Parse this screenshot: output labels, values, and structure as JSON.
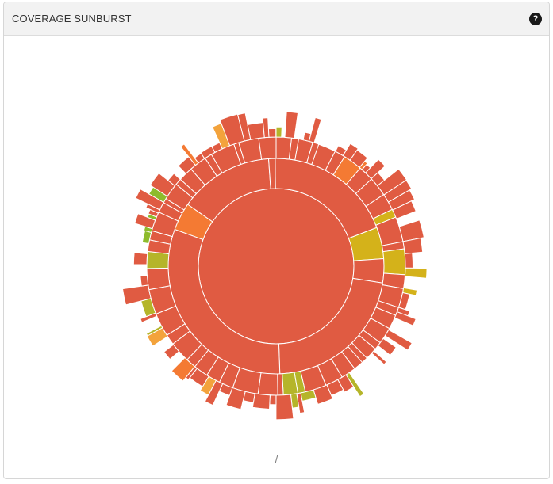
{
  "panel": {
    "title": "COVERAGE SUNBURST",
    "help_icon": "question-circle-icon",
    "breadcrumb": "/"
  },
  "colors": {
    "red": "#e05b42",
    "orange": "#f47a33",
    "yellow": "#d4b21a",
    "olive": "#b5b52a",
    "green": "#8dbb2c",
    "light_orange": "#f3a33c"
  },
  "chart_data": {
    "type": "sunburst",
    "rings": [
      {
        "level": 0,
        "segments": [
          {
            "start_deg": 0,
            "end_deg": 360,
            "color": "red"
          }
        ]
      },
      {
        "level": 1,
        "segments": [
          {
            "start_deg": 359.5,
            "end_deg": 69,
            "color": "red"
          },
          {
            "start_deg": 69,
            "end_deg": 86,
            "color": "yellow"
          },
          {
            "start_deg": 86,
            "end_deg": 99,
            "color": "red"
          },
          {
            "start_deg": 99,
            "end_deg": 178,
            "color": "red"
          },
          {
            "start_deg": 178,
            "end_deg": 290,
            "color": "red"
          },
          {
            "start_deg": 290,
            "end_deg": 305,
            "color": "orange"
          },
          {
            "start_deg": 305,
            "end_deg": 356,
            "color": "red"
          },
          {
            "start_deg": 356,
            "end_deg": 359.5,
            "color": "red"
          }
        ]
      }
    ],
    "outer_colors": [
      "red",
      "yellow",
      "olive",
      "green",
      "orange",
      "light_orange"
    ]
  }
}
